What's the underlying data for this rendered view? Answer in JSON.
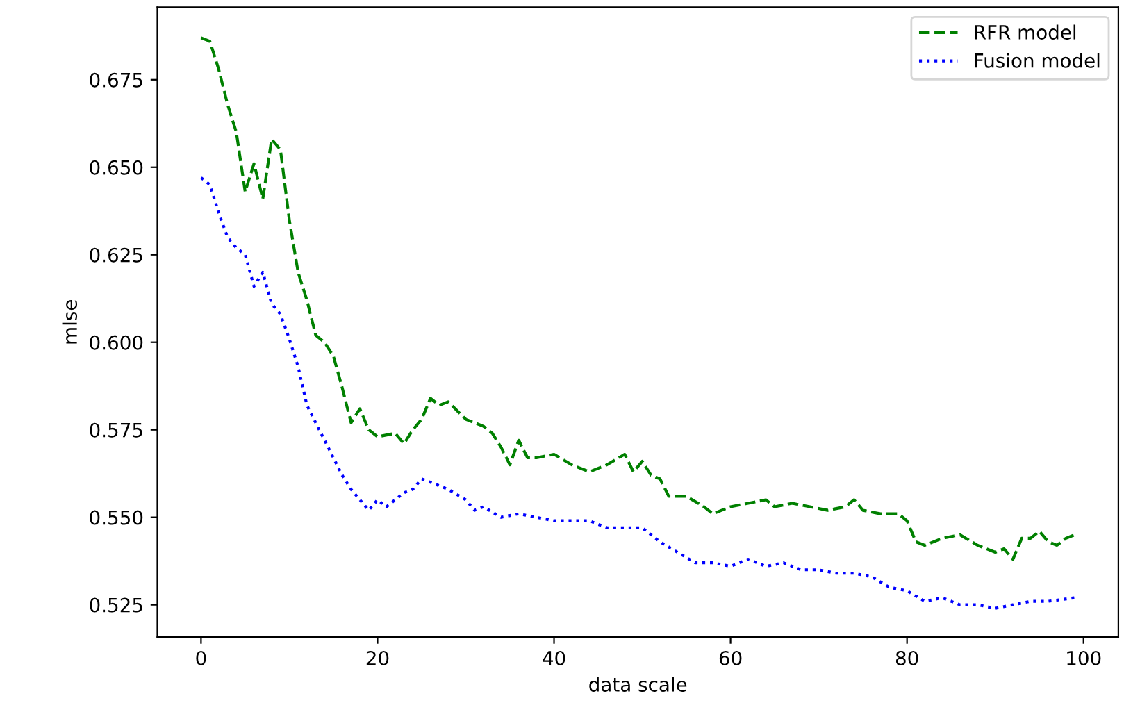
{
  "chart_data": {
    "type": "line",
    "xlabel": "data scale",
    "ylabel": "mlse",
    "xlim": [
      -4.95,
      103.95
    ],
    "ylim": [
      0.5158,
      0.6957
    ],
    "xticks": [
      0,
      20,
      40,
      60,
      80,
      100
    ],
    "yticks": [
      0.525,
      {
        "value": 0.55,
        "label": "0.550"
      },
      0.575,
      {
        "value": 0.6,
        "label": "0.600"
      },
      0.625,
      {
        "value": 0.65,
        "label": "0.650"
      },
      0.675
    ],
    "legend": "top right",
    "grid": false,
    "series": [
      {
        "name": "RFR model",
        "color": "#008000",
        "line_style": "dashed",
        "x": [
          0,
          1,
          2,
          3,
          4,
          5,
          6,
          7,
          8,
          9,
          10,
          11,
          12,
          13,
          14,
          15,
          16,
          17,
          18,
          19,
          20,
          22,
          23,
          24,
          25,
          26,
          27,
          28,
          30,
          32,
          33,
          34,
          35,
          36,
          37,
          38,
          40,
          42,
          44,
          46,
          48,
          49,
          50,
          51,
          52,
          53,
          55,
          57,
          58,
          60,
          62,
          64,
          65,
          67,
          69,
          71,
          73,
          74,
          75,
          77,
          79,
          80,
          81,
          82,
          84,
          86,
          88,
          90,
          91,
          92,
          93,
          94,
          95,
          96,
          97,
          98,
          99
        ],
        "values": [
          0.687,
          0.686,
          0.678,
          0.668,
          0.66,
          0.643,
          0.651,
          0.641,
          0.658,
          0.655,
          0.635,
          0.62,
          0.612,
          0.602,
          0.6,
          0.596,
          0.587,
          0.577,
          0.581,
          0.575,
          0.573,
          0.574,
          0.571,
          0.575,
          0.578,
          0.584,
          0.582,
          0.583,
          0.578,
          0.576,
          0.574,
          0.57,
          0.565,
          0.572,
          0.567,
          0.567,
          0.568,
          0.565,
          0.563,
          0.565,
          0.568,
          0.563,
          0.566,
          0.562,
          0.561,
          0.556,
          0.556,
          0.553,
          0.551,
          0.553,
          0.554,
          0.555,
          0.553,
          0.554,
          0.553,
          0.552,
          0.553,
          0.555,
          0.552,
          0.551,
          0.551,
          0.549,
          0.543,
          0.542,
          0.544,
          0.545,
          0.542,
          0.54,
          0.541,
          0.538,
          0.544,
          0.544,
          0.546,
          0.543,
          0.542,
          0.544,
          0.545
        ]
      },
      {
        "name": "Fusion model",
        "color": "#0000ff",
        "line_style": "dotted",
        "x": [
          0,
          1,
          2,
          3,
          4,
          5,
          6,
          7,
          8,
          9,
          10,
          11,
          12,
          13,
          14,
          15,
          16,
          17,
          18,
          19,
          20,
          21,
          22,
          23,
          24,
          25,
          26,
          28,
          30,
          31,
          32,
          34,
          36,
          38,
          40,
          42,
          44,
          46,
          48,
          50,
          52,
          54,
          56,
          58,
          60,
          62,
          64,
          66,
          68,
          70,
          72,
          74,
          76,
          78,
          80,
          82,
          84,
          86,
          88,
          90,
          92,
          94,
          96,
          99
        ],
        "values": [
          0.647,
          0.645,
          0.637,
          0.63,
          0.627,
          0.625,
          0.616,
          0.62,
          0.611,
          0.608,
          0.601,
          0.593,
          0.582,
          0.577,
          0.572,
          0.567,
          0.562,
          0.558,
          0.555,
          0.552,
          0.555,
          0.553,
          0.555,
          0.557,
          0.558,
          0.561,
          0.56,
          0.558,
          0.555,
          0.552,
          0.553,
          0.55,
          0.551,
          0.55,
          0.549,
          0.549,
          0.549,
          0.547,
          0.547,
          0.547,
          0.543,
          0.54,
          0.537,
          0.537,
          0.536,
          0.538,
          0.536,
          0.537,
          0.535,
          0.535,
          0.534,
          0.534,
          0.533,
          0.53,
          0.529,
          0.526,
          0.527,
          0.525,
          0.525,
          0.524,
          0.525,
          0.526,
          0.526,
          0.527
        ]
      }
    ]
  }
}
